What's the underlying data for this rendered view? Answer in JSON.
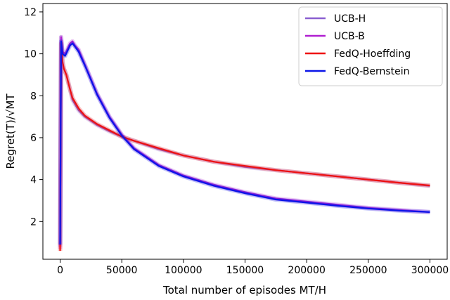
{
  "chart_data": {
    "type": "line",
    "xlabel": "Total number of episodes MT/H",
    "ylabel": "Regret(T)/√MT",
    "xlim": [
      -14000,
      314000
    ],
    "ylim": [
      0.2,
      12.4
    ],
    "xticks": [
      0,
      50000,
      100000,
      150000,
      200000,
      250000,
      300000
    ],
    "xtick_labels": [
      "0",
      "50000",
      "100000",
      "150000",
      "200000",
      "250000",
      "300000"
    ],
    "yticks": [
      2,
      4,
      6,
      8,
      10,
      12
    ],
    "ytick_labels": [
      "2",
      "4",
      "6",
      "8",
      "10",
      "12"
    ],
    "grid": false,
    "legend_position": "top-right",
    "series": [
      {
        "name": "UCB-H",
        "color": "#8a5fd0",
        "x": [
          0,
          800,
          2000,
          3000,
          5000,
          8000,
          10000,
          15000,
          20000,
          30000,
          40000,
          50000,
          60000,
          80000,
          100000,
          125000,
          150000,
          175000,
          200000,
          225000,
          250000,
          275000,
          300000
        ],
        "y": [
          0.8,
          10.8,
          9.6,
          9.3,
          9.0,
          8.3,
          7.8,
          7.3,
          7.0,
          6.6,
          6.3,
          6.05,
          5.85,
          5.45,
          5.15,
          4.85,
          4.6,
          4.45,
          4.3,
          4.15,
          4.0,
          3.85,
          3.7
        ]
      },
      {
        "name": "UCB-B",
        "color": "#b01fd0",
        "x": [
          0,
          800,
          2000,
          4000,
          8000,
          10000,
          12000,
          15000,
          20000,
          25000,
          30000,
          40000,
          50000,
          60000,
          80000,
          100000,
          125000,
          150000,
          175000,
          200000,
          225000,
          250000,
          275000,
          300000
        ],
        "y": [
          0.7,
          10.8,
          10.1,
          10.0,
          10.5,
          10.6,
          10.4,
          10.2,
          9.5,
          8.8,
          8.1,
          7.0,
          6.15,
          5.5,
          4.7,
          4.2,
          3.75,
          3.4,
          3.1,
          2.95,
          2.8,
          2.65,
          2.55,
          2.45
        ]
      },
      {
        "name": "FedQ-Hoeffding",
        "color": "#ee1111",
        "x": [
          0,
          800,
          2000,
          3000,
          5000,
          8000,
          10000,
          15000,
          20000,
          30000,
          40000,
          50000,
          60000,
          80000,
          100000,
          125000,
          150000,
          175000,
          200000,
          225000,
          250000,
          275000,
          300000
        ],
        "y": [
          0.6,
          10.5,
          9.6,
          9.3,
          9.0,
          8.3,
          7.9,
          7.4,
          7.05,
          6.65,
          6.35,
          6.05,
          5.85,
          5.5,
          5.15,
          4.85,
          4.65,
          4.45,
          4.3,
          4.15,
          4.0,
          3.85,
          3.72
        ]
      },
      {
        "name": "FedQ-Bernstein",
        "color": "#0a14e8",
        "x": [
          0,
          800,
          2000,
          4000,
          8000,
          10000,
          12000,
          15000,
          20000,
          25000,
          30000,
          40000,
          50000,
          60000,
          80000,
          100000,
          125000,
          150000,
          175000,
          200000,
          225000,
          250000,
          275000,
          300000
        ],
        "y": [
          0.9,
          10.6,
          10.0,
          9.9,
          10.4,
          10.5,
          10.35,
          10.1,
          9.45,
          8.75,
          8.05,
          6.95,
          6.1,
          5.45,
          4.65,
          4.15,
          3.7,
          3.35,
          3.05,
          2.9,
          2.75,
          2.62,
          2.52,
          2.45
        ]
      }
    ]
  }
}
